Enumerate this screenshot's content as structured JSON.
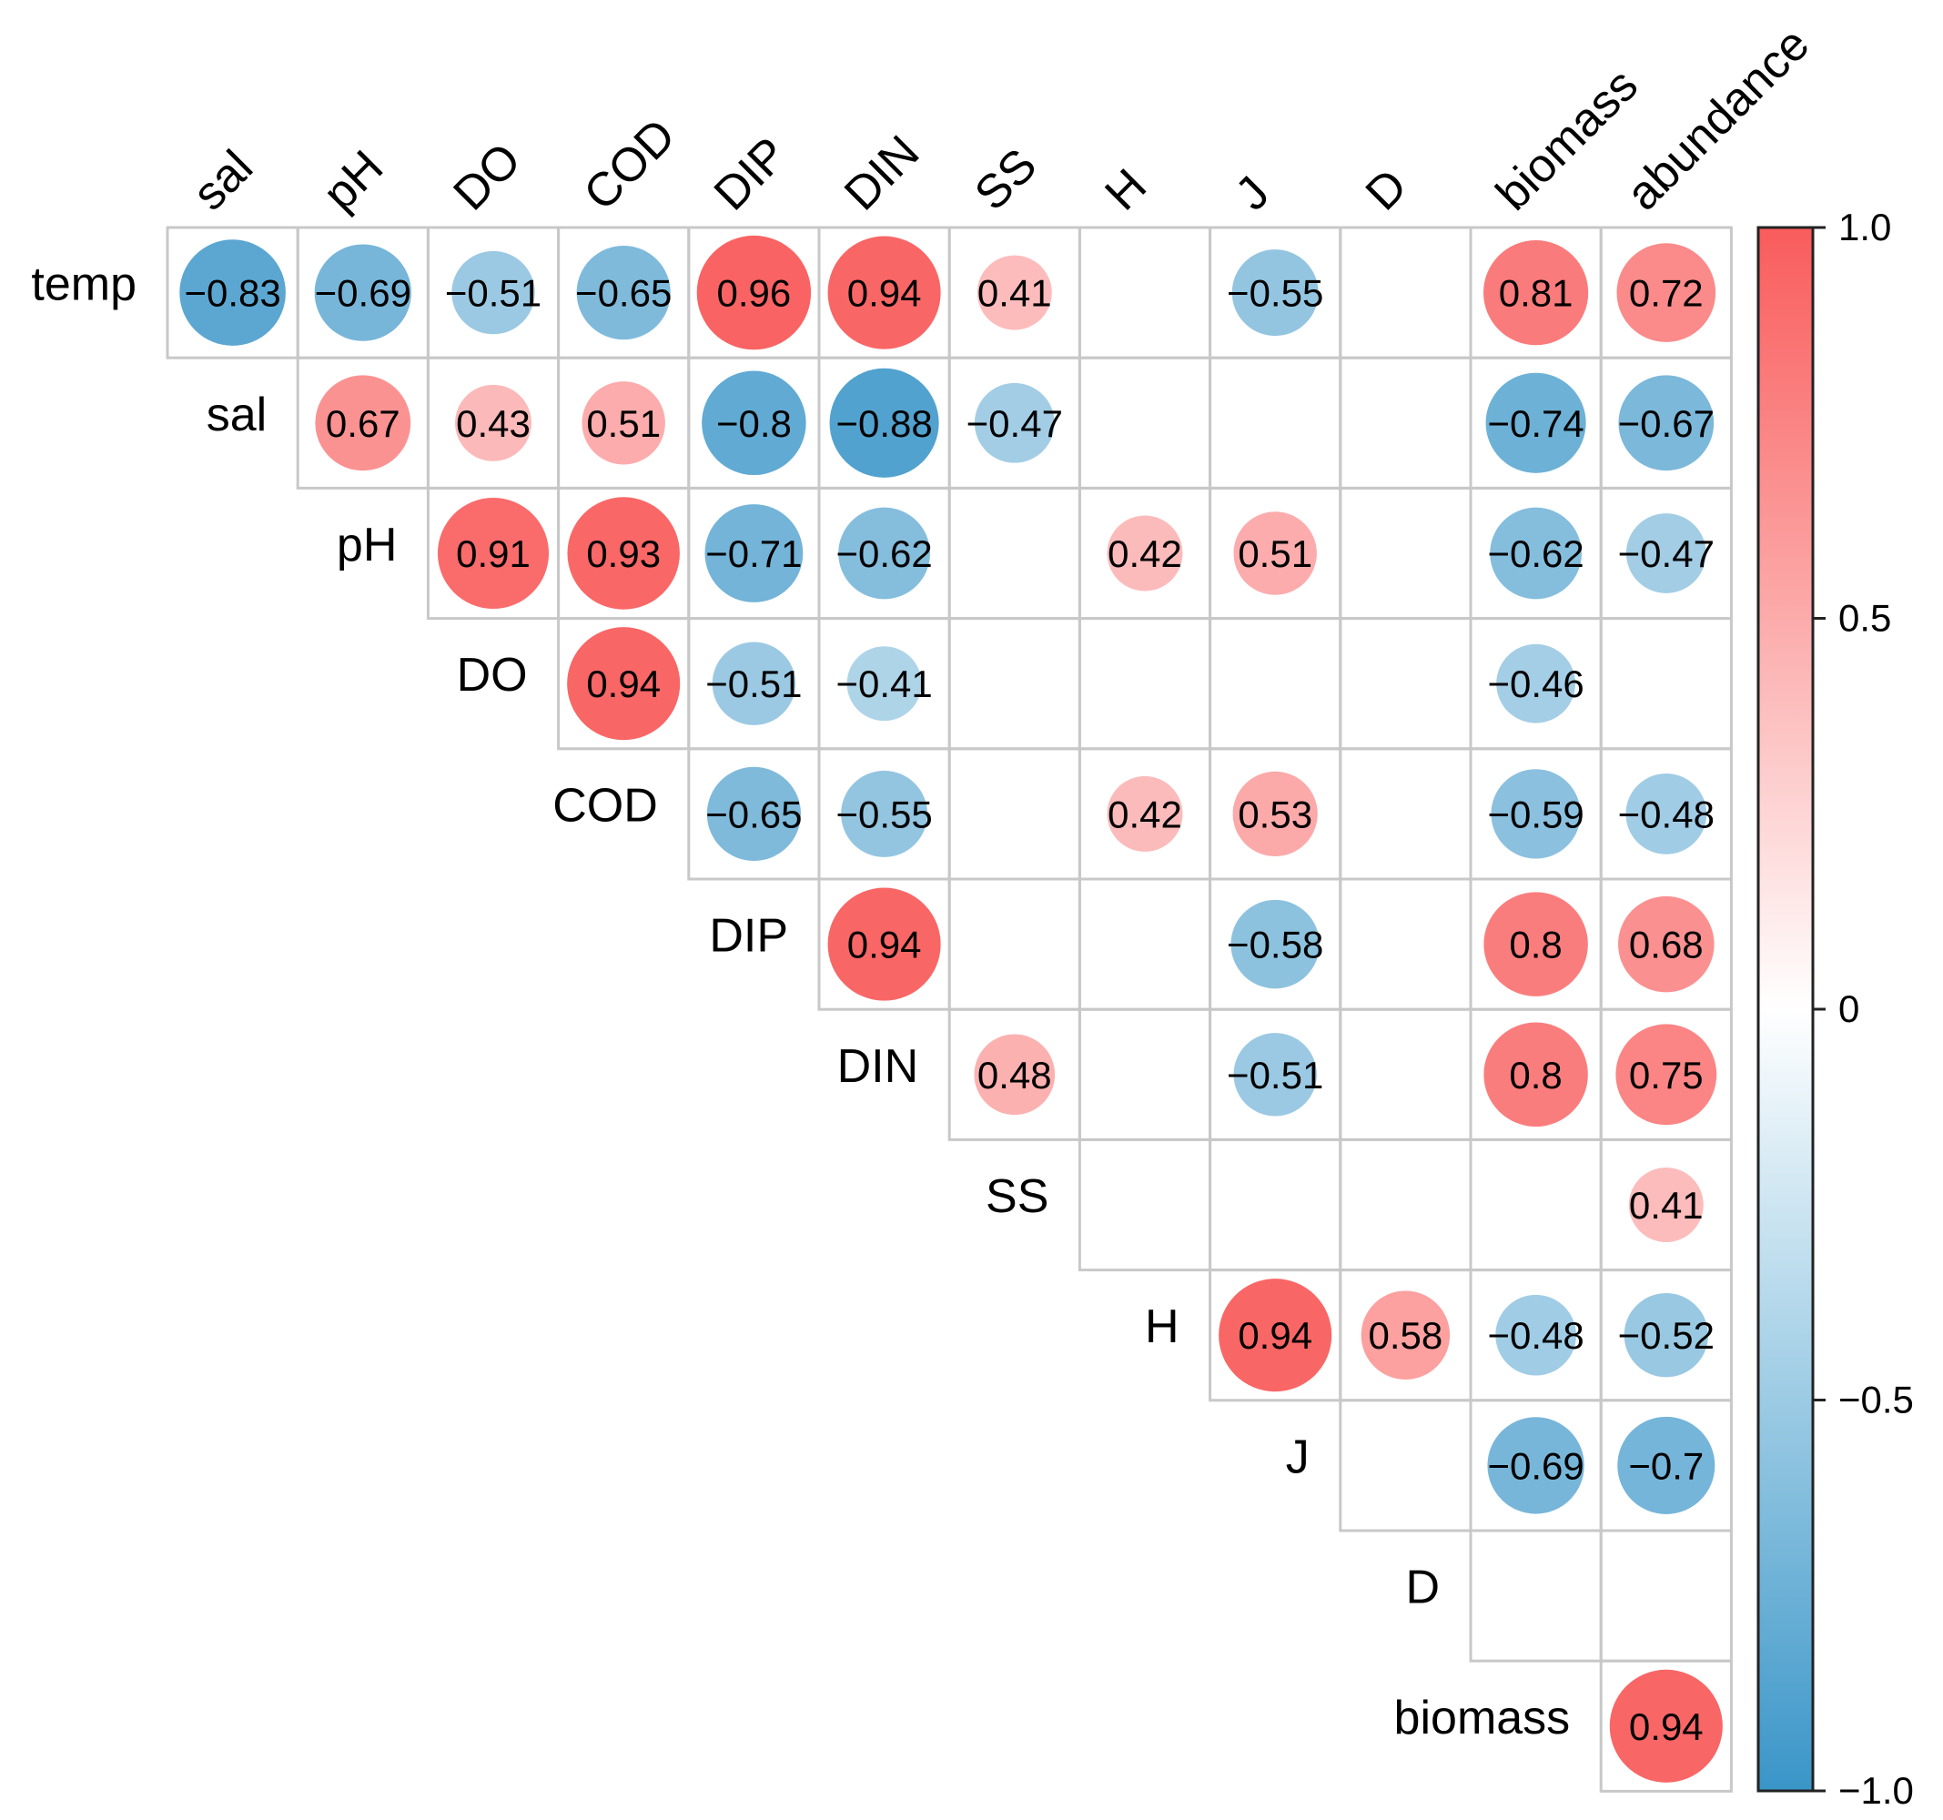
{
  "chart_data": {
    "type": "heatmap",
    "style": "correlation-circle-upper",
    "variables": [
      "temp",
      "sal",
      "pH",
      "DO",
      "COD",
      "DIP",
      "DIN",
      "SS",
      "H",
      "J",
      "D",
      "biomass",
      "abundance"
    ],
    "column_labels": [
      "sal",
      "pH",
      "DO",
      "COD",
      "DIP",
      "DIN",
      "SS",
      "H",
      "J",
      "D",
      "biomass",
      "abundance"
    ],
    "row_labels": [
      "temp",
      "sal",
      "pH",
      "DO",
      "COD",
      "DIP",
      "DIN",
      "SS",
      "H",
      "J",
      "D",
      "biomass"
    ],
    "cells": [
      {
        "row": "temp",
        "col": "sal",
        "value": -0.83,
        "label": "−0.83"
      },
      {
        "row": "temp",
        "col": "pH",
        "value": -0.69,
        "label": "−0.69"
      },
      {
        "row": "temp",
        "col": "DO",
        "value": -0.51,
        "label": "−0.51"
      },
      {
        "row": "temp",
        "col": "COD",
        "value": -0.65,
        "label": "−0.65"
      },
      {
        "row": "temp",
        "col": "DIP",
        "value": 0.96,
        "label": "0.96"
      },
      {
        "row": "temp",
        "col": "DIN",
        "value": 0.94,
        "label": "0.94"
      },
      {
        "row": "temp",
        "col": "SS",
        "value": 0.41,
        "label": "0.41"
      },
      {
        "row": "temp",
        "col": "J",
        "value": -0.55,
        "label": "−0.55"
      },
      {
        "row": "temp",
        "col": "biomass",
        "value": 0.81,
        "label": "0.81"
      },
      {
        "row": "temp",
        "col": "abundance",
        "value": 0.72,
        "label": "0.72"
      },
      {
        "row": "sal",
        "col": "pH",
        "value": 0.67,
        "label": "0.67"
      },
      {
        "row": "sal",
        "col": "DO",
        "value": 0.43,
        "label": "0.43"
      },
      {
        "row": "sal",
        "col": "COD",
        "value": 0.51,
        "label": "0.51"
      },
      {
        "row": "sal",
        "col": "DIP",
        "value": -0.8,
        "label": "−0.8"
      },
      {
        "row": "sal",
        "col": "DIN",
        "value": -0.88,
        "label": "−0.88"
      },
      {
        "row": "sal",
        "col": "SS",
        "value": -0.47,
        "label": "−0.47"
      },
      {
        "row": "sal",
        "col": "biomass",
        "value": -0.74,
        "label": "−0.74"
      },
      {
        "row": "sal",
        "col": "abundance",
        "value": -0.67,
        "label": "−0.67"
      },
      {
        "row": "pH",
        "col": "DO",
        "value": 0.91,
        "label": "0.91"
      },
      {
        "row": "pH",
        "col": "COD",
        "value": 0.93,
        "label": "0.93"
      },
      {
        "row": "pH",
        "col": "DIP",
        "value": -0.71,
        "label": "−0.71"
      },
      {
        "row": "pH",
        "col": "DIN",
        "value": -0.62,
        "label": "−0.62"
      },
      {
        "row": "pH",
        "col": "H",
        "value": 0.42,
        "label": "0.42"
      },
      {
        "row": "pH",
        "col": "J",
        "value": 0.51,
        "label": "0.51"
      },
      {
        "row": "pH",
        "col": "biomass",
        "value": -0.62,
        "label": "−0.62"
      },
      {
        "row": "pH",
        "col": "abundance",
        "value": -0.47,
        "label": "−0.47"
      },
      {
        "row": "DO",
        "col": "COD",
        "value": 0.94,
        "label": "0.94"
      },
      {
        "row": "DO",
        "col": "DIP",
        "value": -0.51,
        "label": "−0.51"
      },
      {
        "row": "DO",
        "col": "DIN",
        "value": -0.41,
        "label": "−0.41"
      },
      {
        "row": "DO",
        "col": "biomass",
        "value": -0.46,
        "label": "−0.46"
      },
      {
        "row": "COD",
        "col": "DIP",
        "value": -0.65,
        "label": "−0.65"
      },
      {
        "row": "COD",
        "col": "DIN",
        "value": -0.55,
        "label": "−0.55"
      },
      {
        "row": "COD",
        "col": "H",
        "value": 0.42,
        "label": "0.42"
      },
      {
        "row": "COD",
        "col": "J",
        "value": 0.53,
        "label": "0.53"
      },
      {
        "row": "COD",
        "col": "biomass",
        "value": -0.59,
        "label": "−0.59"
      },
      {
        "row": "COD",
        "col": "abundance",
        "value": -0.48,
        "label": "−0.48"
      },
      {
        "row": "DIP",
        "col": "DIN",
        "value": 0.94,
        "label": "0.94"
      },
      {
        "row": "DIP",
        "col": "J",
        "value": -0.58,
        "label": "−0.58"
      },
      {
        "row": "DIP",
        "col": "biomass",
        "value": 0.8,
        "label": "0.8"
      },
      {
        "row": "DIP",
        "col": "abundance",
        "value": 0.68,
        "label": "0.68"
      },
      {
        "row": "DIN",
        "col": "SS",
        "value": 0.48,
        "label": "0.48"
      },
      {
        "row": "DIN",
        "col": "J",
        "value": -0.51,
        "label": "−0.51"
      },
      {
        "row": "DIN",
        "col": "biomass",
        "value": 0.8,
        "label": "0.8"
      },
      {
        "row": "DIN",
        "col": "abundance",
        "value": 0.75,
        "label": "0.75"
      },
      {
        "row": "SS",
        "col": "abundance",
        "value": 0.41,
        "label": "0.41"
      },
      {
        "row": "H",
        "col": "J",
        "value": 0.94,
        "label": "0.94"
      },
      {
        "row": "H",
        "col": "D",
        "value": 0.58,
        "label": "0.58"
      },
      {
        "row": "H",
        "col": "biomass",
        "value": -0.48,
        "label": "−0.48"
      },
      {
        "row": "H",
        "col": "abundance",
        "value": -0.52,
        "label": "−0.52"
      },
      {
        "row": "J",
        "col": "biomass",
        "value": -0.69,
        "label": "−0.69"
      },
      {
        "row": "J",
        "col": "abundance",
        "value": -0.7,
        "label": "−0.7"
      },
      {
        "row": "biomass",
        "col": "abundance",
        "value": 0.94,
        "label": "0.94"
      }
    ],
    "colorbar": {
      "range": [
        -1.0,
        1.0
      ],
      "ticks": [
        1.0,
        0.5,
        0,
        -0.5,
        -1.0
      ],
      "tick_labels": [
        "1.0",
        "0.5",
        "0",
        "−0.5",
        "−1.0"
      ],
      "colors": {
        "negative": "#3a95c8",
        "zero": "#ffffff",
        "positive": "#f95c5c"
      }
    }
  }
}
